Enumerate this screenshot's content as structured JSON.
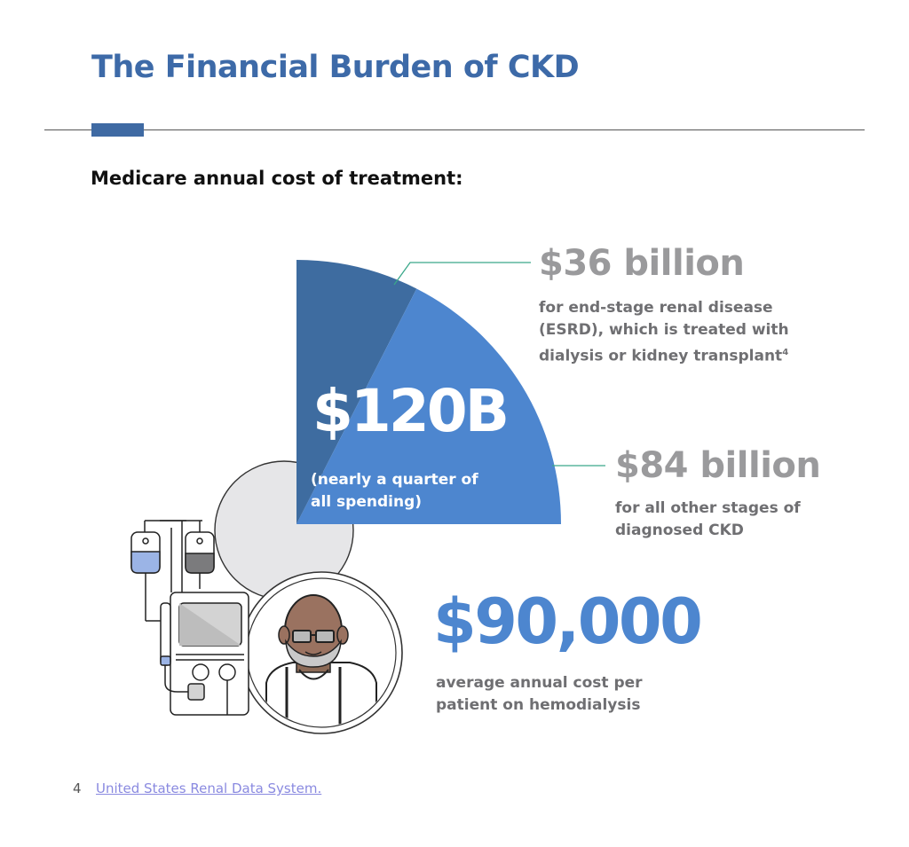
{
  "title": "The Financial Burden of CKD",
  "subtitle": "Medicare annual cost of treatment:",
  "total": {
    "value": "$120B",
    "note": "(nearly a quarter of all spending)"
  },
  "stats": {
    "esrd": {
      "value": "$36 billion",
      "description": "for end-stage renal disease (ESRD), which is treated with dialysis or kidney transplant",
      "footnote_ref": "4"
    },
    "other": {
      "value": "$84 billion",
      "description": "for all other stages of diagnosed CKD"
    },
    "hemodialysis": {
      "value": "$90,000",
      "description": "average annual cost per patient on hemodialysis"
    }
  },
  "footnote": {
    "number": "4",
    "source": "United States Renal Data System."
  },
  "colors": {
    "title": "#3d6aa8",
    "esrd_slice": "#3e6ca0",
    "other_slice": "#4d86cf",
    "stat_gray": "#9a9a9c",
    "leader": "#3aa88a"
  },
  "icons": [
    "iv-bag-icon",
    "dialysis-machine-icon",
    "patient-icon"
  ],
  "chart_data": {
    "type": "pie",
    "title": "",
    "total": 120,
    "unit": "billion USD",
    "categories": [
      "ESRD",
      "all other stages of diagnosed CKD"
    ],
    "values": [
      36,
      84
    ],
    "legend": "none"
  }
}
